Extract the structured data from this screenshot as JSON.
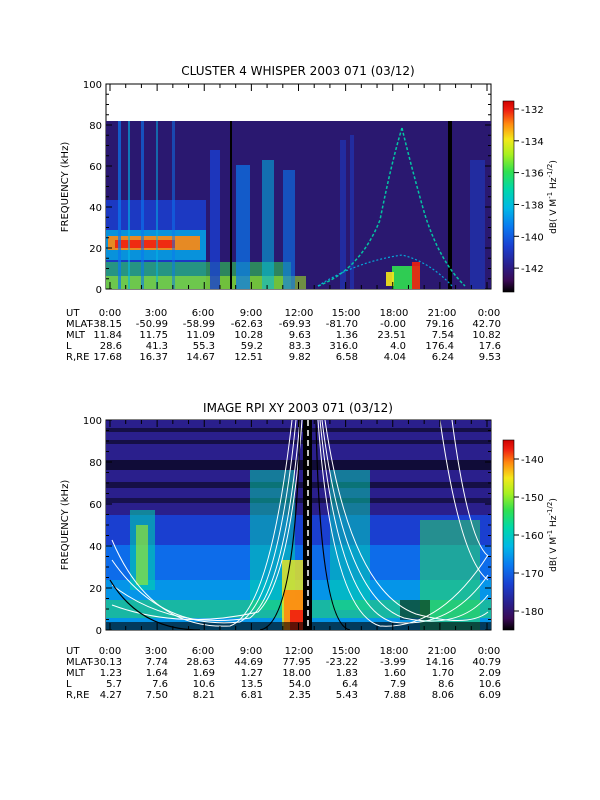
{
  "chart_data": [
    {
      "type": "heatmap",
      "title": "CLUSTER 4 WHISPER 2003 071 (03/12)",
      "ylabel": "FREQUENCY (kHz)",
      "ylim": [
        0,
        100
      ],
      "yticks": [
        "0",
        "20",
        "40",
        "60",
        "80",
        "100"
      ],
      "data_max_frequency": 80,
      "colorbar": {
        "label": "dB( V M⁻¹ Hz⁻¹ᐟ²)",
        "label_parts": {
          "main": "dB( V M",
          "sup1": "-1",
          "mid": " Hz",
          "sup2": "-1/2",
          "end": ")"
        },
        "range": [
          -143.5,
          -131.5
        ],
        "ticks": [
          "-132",
          "-134",
          "-136",
          "-138",
          "-140",
          "-142"
        ]
      },
      "ephemeris": {
        "times": [
          "0:00",
          "3:00",
          "6:00",
          "9:00",
          "12:00",
          "15:00",
          "18:00",
          "21:00",
          "0:00"
        ],
        "rows": [
          {
            "name": "UT",
            "values": [
              "0:00",
              "3:00",
              "6:00",
              "9:00",
              "12:00",
              "15:00",
              "18:00",
              "21:00",
              "0:00"
            ]
          },
          {
            "name": "MLAT",
            "values": [
              "-38.15",
              "-50.99",
              "-58.99",
              "-62.63",
              "-69.93",
              "-81.70",
              "-0.00",
              "79.16",
              "42.70"
            ]
          },
          {
            "name": "MLT",
            "values": [
              "11.84",
              "11.75",
              "11.09",
              "10.28",
              "9.63",
              "1.36",
              "23.51",
              "7.54",
              "10.82"
            ]
          },
          {
            "name": "L",
            "values": [
              "28.6",
              "41.3",
              "55.3",
              "59.2",
              "83.3",
              "316.0",
              "4.0",
              "176.4",
              "17.6"
            ]
          },
          {
            "name": "R,RE",
            "values": [
              "17.68",
              "16.37",
              "14.67",
              "12.51",
              "9.82",
              "6.58",
              "4.04",
              "6.24",
              "9.53"
            ]
          }
        ]
      }
    },
    {
      "type": "heatmap",
      "title": "IMAGE RPI XY 2003 071 (03/12)",
      "ylabel": "FREQUENCY (kHz)",
      "ylim": [
        0,
        100
      ],
      "yticks": [
        "0",
        "20",
        "40",
        "60",
        "80",
        "100"
      ],
      "data_max_frequency": 100,
      "colorbar": {
        "label": "dB( V M⁻¹ Hz⁻¹ᐟ²)",
        "label_parts": {
          "main": "dB( V M",
          "sup1": "-1",
          "mid": " Hz",
          "sup2": "-1/2",
          "end": ")"
        },
        "range": [
          -185,
          -135
        ],
        "ticks": [
          "-140",
          "-150",
          "-160",
          "-170",
          "-180"
        ]
      },
      "ephemeris": {
        "times": [
          "0:00",
          "3:00",
          "6:00",
          "9:00",
          "12:00",
          "15:00",
          "18:00",
          "21:00",
          "0:00"
        ],
        "rows": [
          {
            "name": "UT",
            "values": [
              "0:00",
              "3:00",
              "6:00",
              "9:00",
              "12:00",
              "15:00",
              "18:00",
              "21:00",
              "0:00"
            ]
          },
          {
            "name": "MLAT",
            "values": [
              "-30.13",
              "7.74",
              "28.63",
              "44.69",
              "77.95",
              "-23.22",
              "-3.99",
              "14.16",
              "40.79"
            ]
          },
          {
            "name": "MLT",
            "values": [
              "1.23",
              "1.64",
              "1.69",
              "1.27",
              "18.00",
              "1.83",
              "1.60",
              "1.70",
              "2.09"
            ]
          },
          {
            "name": "L",
            "values": [
              "5.7",
              "7.6",
              "10.6",
              "13.5",
              "54.0",
              "6.4",
              "7.9",
              "8.6",
              "10.6"
            ]
          },
          {
            "name": "R,RE",
            "values": [
              "4.27",
              "7.50",
              "8.21",
              "6.81",
              "2.35",
              "5.43",
              "7.88",
              "8.06",
              "6.09"
            ]
          }
        ]
      }
    }
  ]
}
